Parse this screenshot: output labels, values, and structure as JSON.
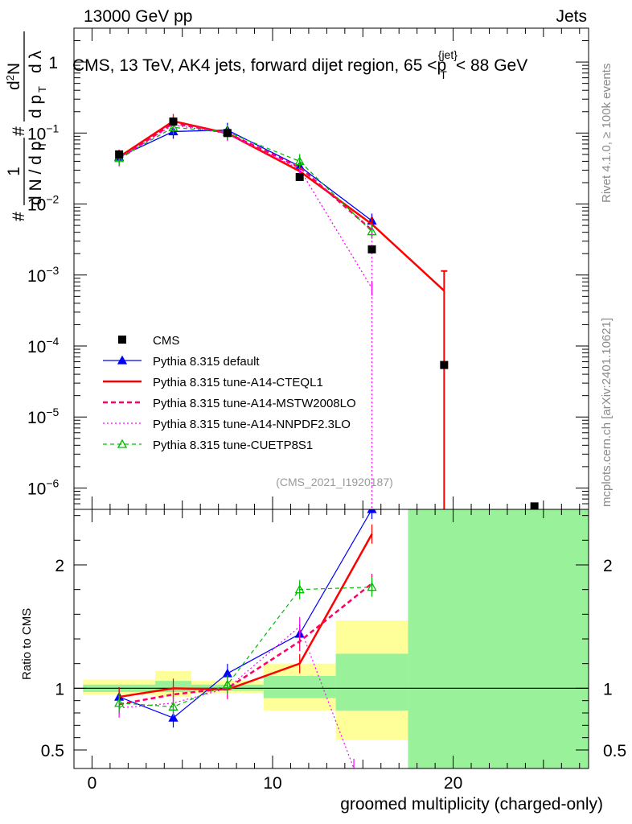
{
  "header": {
    "beam": "13000 GeV pp",
    "category": "Jets",
    "rivet_note": "Rivet 4.1.0, ≥ 100k events",
    "site_note": "mcplots.cern.ch [arXiv:2401.10621]"
  },
  "chart_data": [
    {
      "type": "line",
      "panel": "main",
      "title": "CMS, 13 TeV, AK4 jets, forward dijet region, 65 <p",
      "title_sub": "T",
      "title_sup": "{jet}",
      "title_tail": "< 88 GeV",
      "analysis_id": "(CMS_2021_I1920187)",
      "ylabel_lead": "#",
      "ylabel_num": "1",
      "ylabel_den": "d N / d p",
      "ylabel_den_sub": "T",
      "ylabel_mid": "#",
      "ylabel_d2n": "d",
      "ylabel_d2n_sup": "2",
      "ylabel_d2n_tail": "N",
      "ylabel_dpt": "d p",
      "ylabel_dpt_sub": "T",
      "ylabel_dl": "d λ",
      "yscale": "log",
      "ylim": [
        5e-07,
        3
      ],
      "xlim": [
        -1,
        27.5
      ],
      "yticks": [
        {
          "value": 1,
          "mantissa": "1",
          "exp": ""
        },
        {
          "value": 0.1,
          "mantissa": "10",
          "exp": "−1"
        },
        {
          "value": 0.01,
          "mantissa": "10",
          "exp": "−2"
        },
        {
          "value": 0.001,
          "mantissa": "10",
          "exp": "−3"
        },
        {
          "value": 0.0001,
          "mantissa": "10",
          "exp": "−4"
        },
        {
          "value": 1e-05,
          "mantissa": "10",
          "exp": "−5"
        },
        {
          "value": 1e-06,
          "mantissa": "10",
          "exp": "−6"
        }
      ],
      "legend_position": "bottom-left",
      "data": {
        "name": "CMS",
        "x": [
          1.5,
          4.5,
          7.5,
          11.5,
          15.5,
          19.5,
          24.5
        ],
        "y": [
          0.05,
          0.145,
          0.1,
          0.024,
          0.0023,
          5.4e-05,
          5.5e-07
        ]
      },
      "series": [
        {
          "name": "Pythia 8.315 default",
          "color": "#0000ff",
          "dash": "",
          "marker": "triangle-filled",
          "x": [
            1.5,
            4.5,
            7.5,
            11.5,
            15.5
          ],
          "y": [
            0.046,
            0.105,
            0.11,
            0.034,
            0.0058
          ]
        },
        {
          "name": "Pythia 8.315 tune-A14-CTEQL1",
          "color": "#ff0000",
          "dash": "",
          "marker": "none",
          "width": 2.5,
          "x": [
            1.5,
            4.5,
            7.5,
            11.5,
            15.5,
            19.5
          ],
          "y": [
            0.046,
            0.147,
            0.099,
            0.029,
            0.0052,
            0.0006
          ]
        },
        {
          "name": "Pythia 8.315 tune-A14-MSTW2008LO",
          "color": "#ff0066",
          "dash": "6,4",
          "marker": "none",
          "width": 2.5,
          "x": [
            1.5,
            4.5,
            7.5,
            11.5,
            15.5
          ],
          "y": [
            0.043,
            0.138,
            0.1,
            0.033,
            0.0043
          ]
        },
        {
          "name": "Pythia 8.315 tune-A14-NNPDF2.3LO",
          "color": "#ff00ff",
          "dash": "2,3",
          "marker": "none",
          "x": [
            1.5,
            4.5,
            7.5,
            11.5,
            15.5
          ],
          "y": [
            0.044,
            0.13,
            0.098,
            0.031,
            0.00065
          ]
        },
        {
          "name": "Pythia 8.315 tune-CUETP8S1",
          "color": "#00bb00",
          "dash": "5,4",
          "marker": "triangle-open",
          "x": [
            1.5,
            4.5,
            7.5,
            11.5,
            15.5
          ],
          "y": [
            0.044,
            0.12,
            0.103,
            0.04,
            0.0041
          ]
        }
      ]
    },
    {
      "type": "line",
      "panel": "ratio",
      "ylabel": "Ratio to CMS",
      "xlabel": "groomed multiplicity (charged-only)",
      "ylim": [
        0.35,
        2.45
      ],
      "xlim": [
        -1,
        27.5
      ],
      "xticks": [
        0,
        10,
        20
      ],
      "yticks": [
        0.5,
        1,
        2
      ],
      "reference": 1,
      "uncertainty_bands": [
        {
          "x_lo": -0.5,
          "x_hi": 3.5,
          "yellow": [
            0.95,
            1.07
          ],
          "green": [
            0.97,
            1.03
          ]
        },
        {
          "x_lo": 3.5,
          "x_hi": 5.5,
          "yellow": [
            0.93,
            1.14
          ],
          "green": [
            0.97,
            1.06
          ]
        },
        {
          "x_lo": 5.5,
          "x_hi": 9.5,
          "yellow": [
            0.96,
            1.06
          ],
          "green": [
            0.98,
            1.03
          ]
        },
        {
          "x_lo": 9.5,
          "x_hi": 13.5,
          "yellow": [
            0.82,
            1.2
          ],
          "green": [
            0.92,
            1.1
          ]
        },
        {
          "x_lo": 13.5,
          "x_hi": 17.5,
          "yellow": [
            0.58,
            1.55
          ],
          "green": [
            0.82,
            1.28
          ]
        },
        {
          "x_lo": 17.5,
          "x_hi": 27.5,
          "yellow": [
            0.35,
            2.45
          ],
          "green": [
            0.35,
            2.45
          ]
        }
      ],
      "series": [
        {
          "name": "Pythia 8.315 default",
          "x": [
            1.5,
            4.5,
            7.5,
            11.5,
            15.5,
            16.0
          ],
          "y": [
            0.93,
            0.76,
            1.12,
            1.44,
            2.45,
            2.45
          ]
        },
        {
          "name": "Pythia 8.315 tune-A14-CTEQL1",
          "x": [
            1.5,
            4.5,
            7.5,
            11.5,
            15.5
          ],
          "y": [
            0.93,
            1.0,
            0.99,
            1.2,
            2.25
          ]
        },
        {
          "name": "Pythia 8.315 tune-A14-MSTW2008LO",
          "x": [
            1.5,
            4.5,
            7.5,
            11.5,
            15.5
          ],
          "y": [
            0.87,
            0.95,
            1.0,
            1.38,
            1.85
          ]
        },
        {
          "name": "Pythia 8.315 tune-A14-NNPDF2.3LO",
          "x": [
            1.5,
            4.5,
            7.5,
            11.5,
            14.5
          ],
          "y": [
            0.84,
            0.88,
            1.0,
            1.5,
            0.35
          ]
        },
        {
          "name": "Pythia 8.315 tune-CUETP8S1",
          "x": [
            1.5,
            4.5,
            7.5,
            11.5,
            15.5
          ],
          "y": [
            0.88,
            0.85,
            1.03,
            1.8,
            1.82
          ]
        }
      ]
    }
  ]
}
